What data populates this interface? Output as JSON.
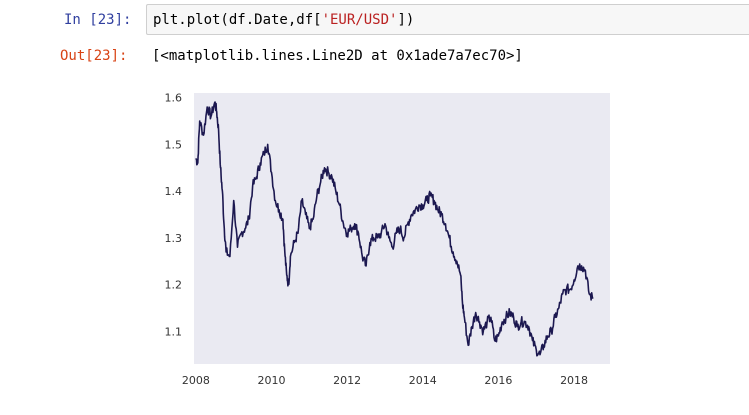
{
  "cell": {
    "in_prompt": "In [23]:",
    "code_pre": "plt.plot(df.Date,df[",
    "code_str": "'EUR/USD'",
    "code_post": "])",
    "out_prompt": "Out[23]:",
    "output_text": "[<matplotlib.lines.Line2D at 0x1ade7a7ec70>]"
  },
  "chart_data": {
    "type": "line",
    "series_color": "#1c1850",
    "background": "#eaeaf2",
    "grid": false,
    "xlim": [
      2007.95,
      2018.95
    ],
    "ylim": [
      1.03,
      1.61
    ],
    "xticks": [
      2008,
      2010,
      2012,
      2014,
      2016,
      2018
    ],
    "yticks": [
      1.1,
      1.2,
      1.3,
      1.4,
      1.5,
      1.6
    ],
    "xtick_labels": [
      "2008",
      "2010",
      "2012",
      "2014",
      "2016",
      "2018"
    ],
    "ytick_labels": [
      "1.1",
      "1.2",
      "1.3",
      "1.4",
      "1.5",
      "1.6"
    ],
    "x": [
      2008.0,
      2008.05,
      2008.1,
      2008.2,
      2008.3,
      2008.4,
      2008.5,
      2008.55,
      2008.6,
      2008.65,
      2008.7,
      2008.75,
      2008.8,
      2008.9,
      2009.0,
      2009.1,
      2009.2,
      2009.3,
      2009.4,
      2009.5,
      2009.6,
      2009.7,
      2009.8,
      2009.9,
      2010.0,
      2010.1,
      2010.2,
      2010.3,
      2010.35,
      2010.4,
      2010.45,
      2010.5,
      2010.6,
      2010.7,
      2010.8,
      2010.9,
      2011.0,
      2011.1,
      2011.2,
      2011.3,
      2011.4,
      2011.5,
      2011.6,
      2011.7,
      2011.8,
      2011.9,
      2012.0,
      2012.1,
      2012.2,
      2012.3,
      2012.4,
      2012.5,
      2012.6,
      2012.7,
      2012.8,
      2012.9,
      2013.0,
      2013.1,
      2013.2,
      2013.3,
      2013.4,
      2013.5,
      2013.6,
      2013.7,
      2013.8,
      2013.9,
      2014.0,
      2014.1,
      2014.2,
      2014.3,
      2014.4,
      2014.5,
      2014.6,
      2014.7,
      2014.8,
      2014.9,
      2015.0,
      2015.05,
      2015.1,
      2015.2,
      2015.3,
      2015.4,
      2015.5,
      2015.6,
      2015.7,
      2015.8,
      2015.9,
      2016.0,
      2016.1,
      2016.2,
      2016.3,
      2016.4,
      2016.5,
      2016.6,
      2016.7,
      2016.8,
      2016.9,
      2017.0,
      2017.1,
      2017.2,
      2017.3,
      2017.4,
      2017.5,
      2017.6,
      2017.7,
      2017.8,
      2017.9,
      2018.0,
      2018.1,
      2018.2,
      2018.3,
      2018.4,
      2018.5
    ],
    "y": [
      1.47,
      1.46,
      1.55,
      1.52,
      1.58,
      1.56,
      1.59,
      1.57,
      1.53,
      1.45,
      1.4,
      1.32,
      1.27,
      1.26,
      1.38,
      1.28,
      1.31,
      1.32,
      1.34,
      1.41,
      1.43,
      1.46,
      1.48,
      1.5,
      1.44,
      1.38,
      1.36,
      1.34,
      1.27,
      1.22,
      1.2,
      1.26,
      1.29,
      1.31,
      1.38,
      1.35,
      1.32,
      1.34,
      1.39,
      1.42,
      1.45,
      1.44,
      1.43,
      1.4,
      1.37,
      1.33,
      1.31,
      1.32,
      1.33,
      1.31,
      1.26,
      1.24,
      1.29,
      1.3,
      1.3,
      1.31,
      1.33,
      1.3,
      1.28,
      1.31,
      1.32,
      1.3,
      1.33,
      1.35,
      1.36,
      1.37,
      1.37,
      1.38,
      1.39,
      1.38,
      1.36,
      1.35,
      1.33,
      1.3,
      1.27,
      1.25,
      1.22,
      1.16,
      1.13,
      1.07,
      1.11,
      1.14,
      1.12,
      1.1,
      1.12,
      1.13,
      1.08,
      1.09,
      1.12,
      1.13,
      1.14,
      1.13,
      1.11,
      1.12,
      1.12,
      1.11,
      1.08,
      1.06,
      1.05,
      1.07,
      1.09,
      1.1,
      1.13,
      1.15,
      1.18,
      1.19,
      1.19,
      1.21,
      1.24,
      1.24,
      1.23,
      1.18,
      1.17
    ]
  }
}
